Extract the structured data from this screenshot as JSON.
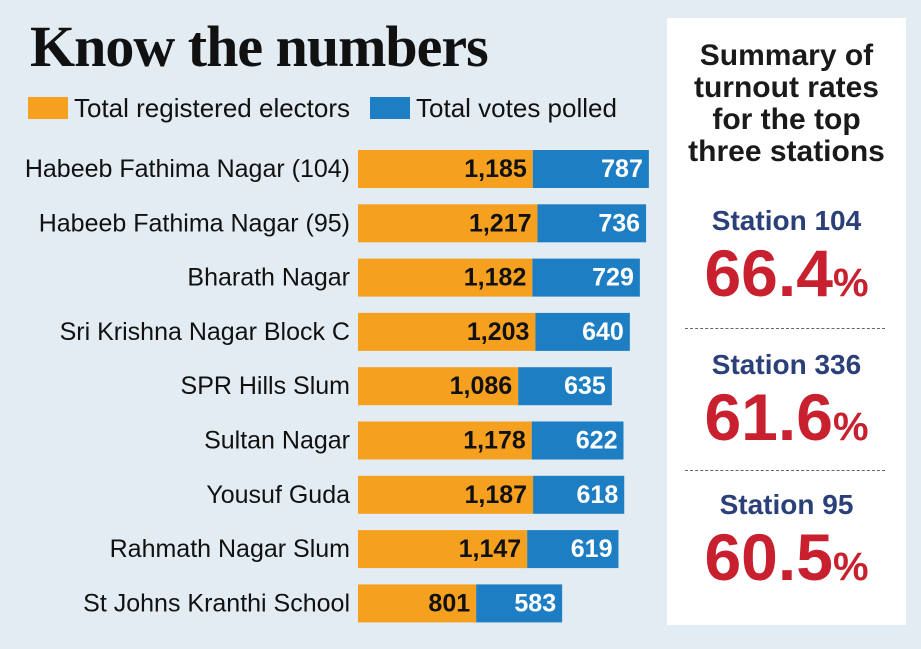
{
  "title": "Know the numbers",
  "legend": {
    "electors_label": "Total registered electors",
    "votes_label": "Total votes polled"
  },
  "colors": {
    "electors": "#f6a01f",
    "votes": "#1e7ec4",
    "rate": "#c8202e",
    "station_label": "#2b3f78"
  },
  "chart_data": {
    "type": "bar",
    "orientation": "horizontal",
    "stacked": true,
    "categories": [
      "Habeeb Fathima Nagar (104)",
      "Habeeb Fathima Nagar (95)",
      "Bharath Nagar",
      "Sri Krishna Nagar Block C",
      "SPR Hills Slum",
      "Sultan Nagar",
      "Yousuf Guda",
      "Rahmath Nagar Slum",
      "St Johns Kranthi School"
    ],
    "series": [
      {
        "name": "Total registered electors",
        "values": [
          1185,
          1217,
          1182,
          1203,
          1086,
          1178,
          1187,
          1147,
          801
        ],
        "labels": [
          "1,185",
          "1,217",
          "1,182",
          "1,203",
          "1,086",
          "1,178",
          "1,187",
          "1,147",
          "801"
        ]
      },
      {
        "name": "Total votes polled",
        "values": [
          787,
          736,
          729,
          640,
          635,
          622,
          618,
          619,
          583
        ],
        "labels": [
          "787",
          "736",
          "729",
          "640",
          "635",
          "622",
          "618",
          "619",
          "583"
        ]
      }
    ],
    "legend_position": "top-left",
    "grid": false
  },
  "summary": {
    "heading": "Summary of\nturnout rates\nfor the top\nthree stations",
    "stations": [
      {
        "label": "Station 104",
        "rate": "66.4",
        "unit": "%"
      },
      {
        "label": "Station 336",
        "rate": "61.6",
        "unit": "%"
      },
      {
        "label": "Station 95",
        "rate": "60.5",
        "unit": "%"
      }
    ]
  }
}
